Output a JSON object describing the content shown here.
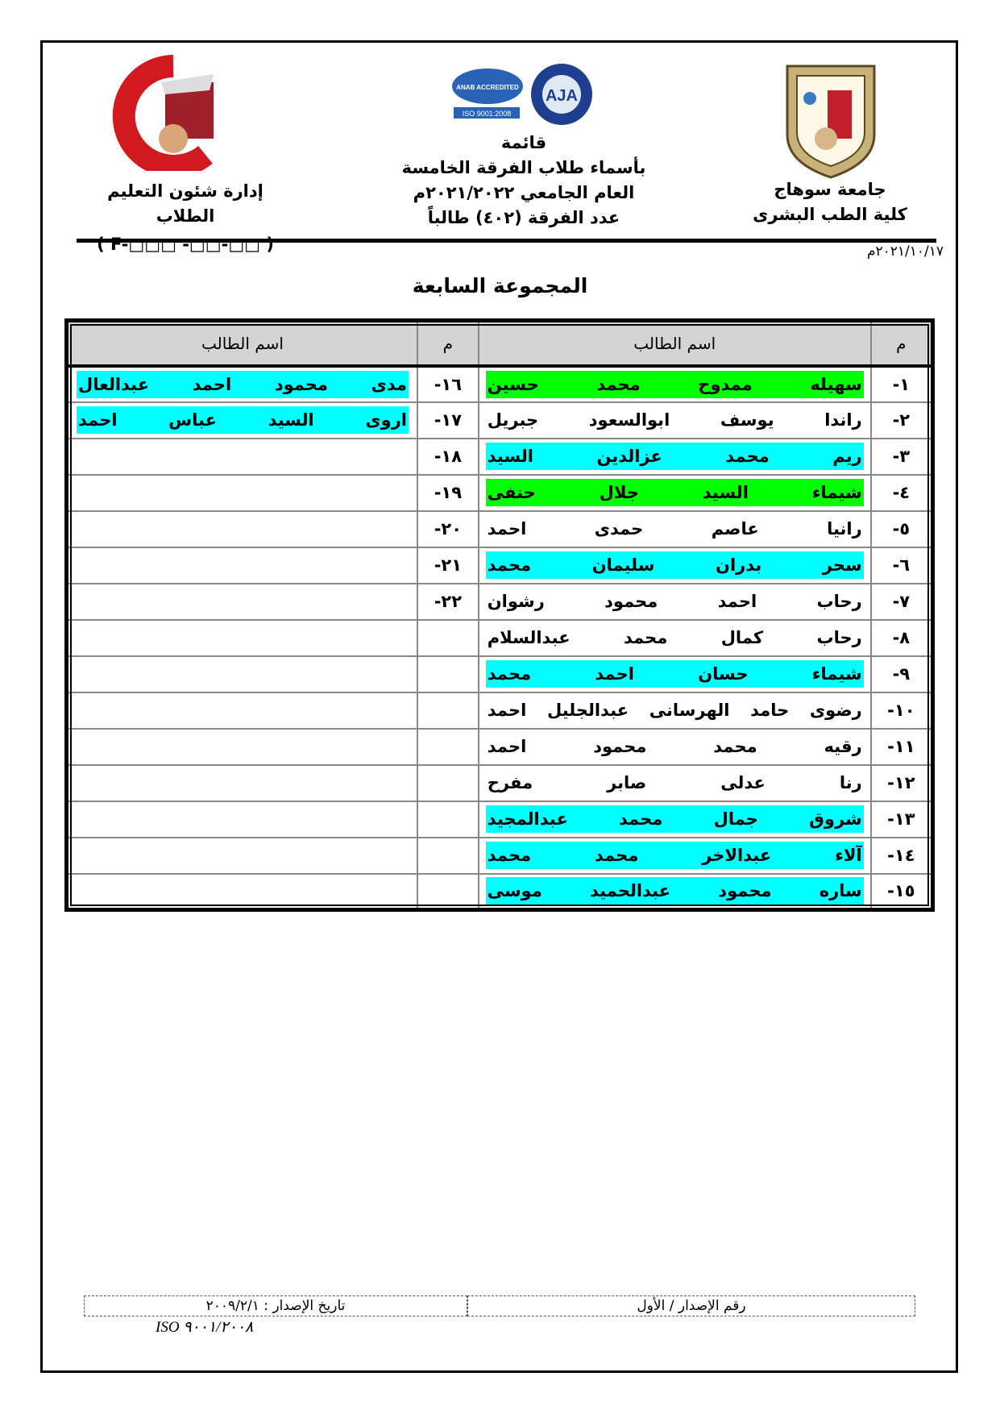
{
  "header": {
    "right": {
      "university": "جامعة سوهاج",
      "faculty": "كلية الطب البشرى"
    },
    "center": {
      "line1": "قائمة",
      "line2": "بأسماء طلاب الفرقة الخامسة",
      "line3": "العام الجامعي ٢٠٢١/٢٠٢٢م",
      "line4": "عدد الفرقة (٤٠٢) طالباً",
      "cert_logos": [
        "ANAB ACCREDITED",
        "ISO 9001:2008",
        "AJA"
      ]
    },
    "left": {
      "department": "إدارة شئون التعليم الطلاب",
      "form_code": "( F-□□□ -□□-□□ )",
      "logo_text": [
        "جامعة سوهاج",
        "كلية الطب"
      ]
    }
  },
  "date": "٢٠٢١/١٠/١٧م",
  "group_title": "المجموعة السابعة",
  "table": {
    "headers": {
      "num": "م",
      "name": "اسم الطالب"
    },
    "colors": {
      "green": "#00ff00",
      "cyan": "#00ffff"
    },
    "rows": [
      {
        "right": {
          "num": "١-",
          "name": "سهيله ممدوح محمد حسين",
          "hl": "green"
        },
        "left": {
          "num": "١٦-",
          "name": "مدى محمود احمد عبدالعال",
          "hl": "cyan"
        }
      },
      {
        "right": {
          "num": "٢-",
          "name": "راندا يوسف ابوالسعود جبريل",
          "hl": ""
        },
        "left": {
          "num": "١٧-",
          "name": "اروى السيد عباس احمد",
          "hl": "cyan"
        }
      },
      {
        "right": {
          "num": "٣-",
          "name": "ريم محمد عزالدين السيد",
          "hl": "cyan"
        },
        "left": {
          "num": "١٨-",
          "name": "",
          "hl": ""
        }
      },
      {
        "right": {
          "num": "٤-",
          "name": "شيماء السيد جلال حنفى",
          "hl": "green"
        },
        "left": {
          "num": "١٩-",
          "name": "",
          "hl": ""
        }
      },
      {
        "right": {
          "num": "٥-",
          "name": "رانيا عاصم حمدى احمد",
          "hl": ""
        },
        "left": {
          "num": "٢٠-",
          "name": "",
          "hl": ""
        }
      },
      {
        "right": {
          "num": "٦-",
          "name": "سحر بدران سليمان محمد",
          "hl": "cyan"
        },
        "left": {
          "num": "٢١-",
          "name": "",
          "hl": ""
        }
      },
      {
        "right": {
          "num": "٧-",
          "name": "رحاب احمد محمود رشوان",
          "hl": ""
        },
        "left": {
          "num": "٢٢-",
          "name": "",
          "hl": ""
        }
      },
      {
        "right": {
          "num": "٨-",
          "name": "رحاب كمال محمد عبدالسلام",
          "hl": ""
        },
        "left": {
          "num": "",
          "name": "",
          "hl": ""
        }
      },
      {
        "right": {
          "num": "٩-",
          "name": "شيماء حسان احمد محمد",
          "hl": "cyan"
        },
        "left": {
          "num": "",
          "name": "",
          "hl": ""
        }
      },
      {
        "right": {
          "num": "١٠-",
          "name": "رضوى حامد الهرسانى عبدالجليل احمد",
          "hl": ""
        },
        "left": {
          "num": "",
          "name": "",
          "hl": ""
        }
      },
      {
        "right": {
          "num": "١١-",
          "name": "رقيه محمد محمود احمد",
          "hl": ""
        },
        "left": {
          "num": "",
          "name": "",
          "hl": ""
        }
      },
      {
        "right": {
          "num": "١٢-",
          "name": "رنا عدلى صابر مفرح",
          "hl": ""
        },
        "left": {
          "num": "",
          "name": "",
          "hl": ""
        }
      },
      {
        "right": {
          "num": "١٣-",
          "name": "شروق جمال محمد عبدالمجيد",
          "hl": "cyan"
        },
        "left": {
          "num": "",
          "name": "",
          "hl": ""
        }
      },
      {
        "right": {
          "num": "١٤-",
          "name": "آلاء عبدالاخر محمد محمد",
          "hl": "cyan"
        },
        "left": {
          "num": "",
          "name": "",
          "hl": ""
        }
      },
      {
        "right": {
          "num": "١٥-",
          "name": "ساره محمود عبدالحميد موسى",
          "hl": "cyan"
        },
        "left": {
          "num": "",
          "name": "",
          "hl": ""
        }
      }
    ]
  },
  "footer": {
    "issue_number": "رقم الإصدار / الأول",
    "issue_date": "تاريخ الإصدار : ٢٠٠٩/٢/١",
    "iso": "ISO ٩٠٠١/٢٠٠٨"
  }
}
